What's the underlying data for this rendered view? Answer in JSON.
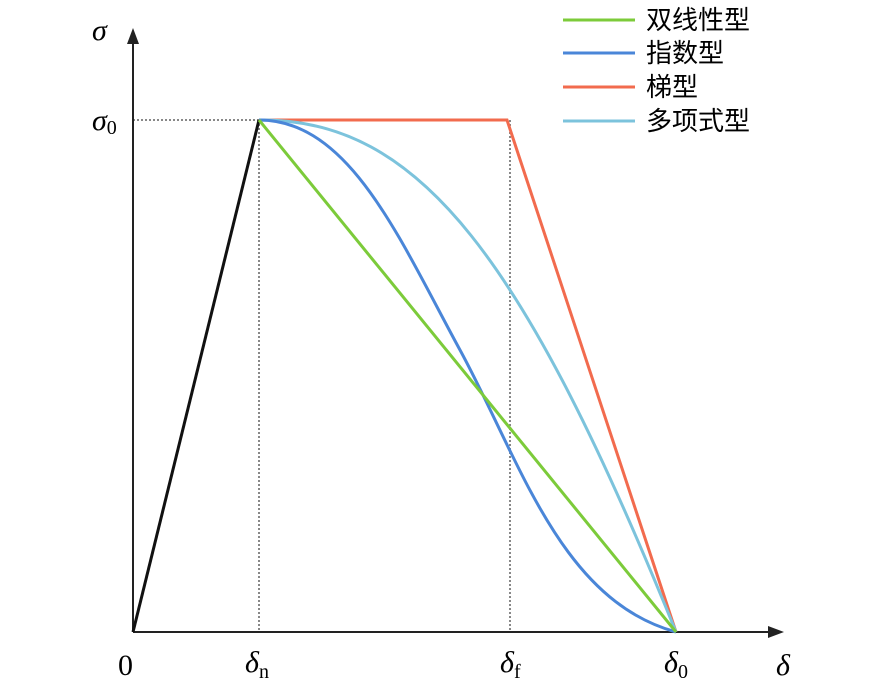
{
  "axes": {
    "y_label": "σ",
    "x_label": "δ",
    "origin": "0"
  },
  "y_mark": {
    "base": "σ",
    "sub": "0"
  },
  "x_marks": [
    {
      "base": "δ",
      "sub": "n"
    },
    {
      "base": "δ",
      "sub": "f"
    },
    {
      "base": "δ",
      "sub": "0"
    }
  ],
  "legend": [
    "双线性型",
    "指数型",
    "梯型",
    "多项式型"
  ]
}
